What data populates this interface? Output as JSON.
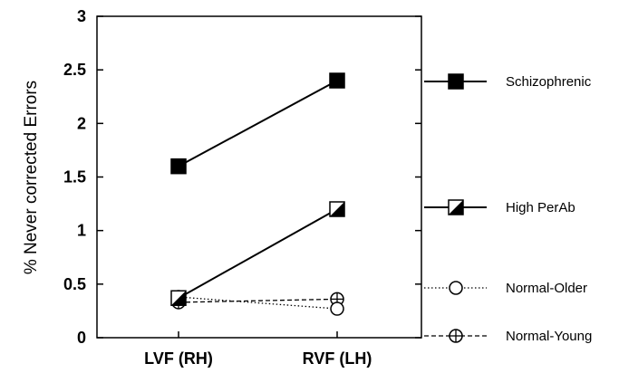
{
  "chart_data": {
    "type": "line",
    "categories": [
      "LVF (RH)",
      "RVF (LH)"
    ],
    "ylabel": "% Never corrected Errors",
    "ylim": [
      0,
      3
    ],
    "yticks": [
      "0",
      "0.5",
      "1",
      "1.5",
      "2",
      "2.5",
      "3"
    ],
    "grid": false,
    "legend_position": "right",
    "series": [
      {
        "name": "Schizophrenic",
        "values": [
          1.6,
          2.4
        ],
        "marker": "filled-square",
        "line": "solid"
      },
      {
        "name": "High PerAb",
        "values": [
          0.37,
          1.2
        ],
        "marker": "half-filled-square",
        "line": "solid"
      },
      {
        "name": "Normal-Older",
        "values": [
          0.38,
          0.27
        ],
        "marker": "open-circle",
        "line": "dotted"
      },
      {
        "name": "Normal-Young",
        "values": [
          0.33,
          0.36
        ],
        "marker": "crossed-circle",
        "line": "dashed"
      }
    ]
  }
}
